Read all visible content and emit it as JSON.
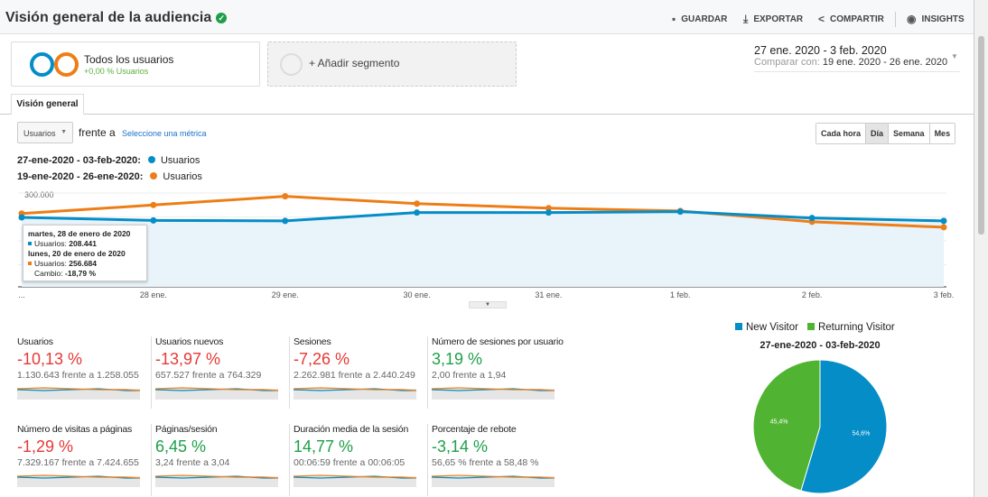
{
  "header": {
    "title": "Visión general de la audiencia",
    "verified_icon": "check-shield-icon",
    "actions": [
      {
        "label": "GUARDAR",
        "icon": "save-icon"
      },
      {
        "label": "EXPORTAR",
        "icon": "download-icon"
      },
      {
        "label": "COMPARTIR",
        "icon": "share-icon"
      },
      {
        "label": "INSIGHTS",
        "icon": "insights-icon"
      }
    ]
  },
  "segments": {
    "active": {
      "name": "Todos los usuarios",
      "sub": "+0,00 % Usuarios"
    },
    "add_label": "+ Añadir segmento"
  },
  "date_range": {
    "main": "27 ene. 2020 - 3 feb. 2020",
    "compare_label": "Comparar con:",
    "compare": "19 ene. 2020 - 26 ene. 2020"
  },
  "tabs": [
    {
      "label": "Visión general",
      "active": true
    }
  ],
  "controls": {
    "metric": "Usuarios",
    "versus": "frente a",
    "select_metric": "Seleccione una métrica",
    "periods": [
      {
        "label": "Cada hora"
      },
      {
        "label": "Día",
        "active": true
      },
      {
        "label": "Semana"
      },
      {
        "label": "Mes"
      }
    ]
  },
  "colors": {
    "current": "#058dc7",
    "previous": "#ed7e17",
    "negative": "#e53935",
    "positive": "#1ea04a",
    "new_visitor": "#058dc7",
    "returning_visitor": "#50b432"
  },
  "chart_data": {
    "type": "line",
    "legend": [
      {
        "period": "27-ene-2020 - 03-feb-2020:",
        "name": "Usuarios"
      },
      {
        "period": "19-ene-2020 - 26-ene-2020:",
        "name": "Usuarios"
      }
    ],
    "y_tick_label": "300.000",
    "ylim": [
      0,
      300000
    ],
    "x_tick_labels": [
      "...",
      "28 ene.",
      "29 ene.",
      "30 ene.",
      "31 ene.",
      "1 feb.",
      "2 feb.",
      "3 feb."
    ],
    "series": [
      {
        "name": "Usuarios",
        "period": "27-ene-2020 - 03-feb-2020",
        "values": [
          218000,
          208441,
          207000,
          233000,
          233000,
          236000,
          216000,
          207000
        ]
      },
      {
        "name": "Usuarios",
        "period": "19-ene-2020 - 26-ene-2020",
        "values": [
          230000,
          256684,
          284000,
          261000,
          247000,
          238000,
          204000,
          187000
        ]
      }
    ]
  },
  "tooltip": {
    "date1": "martes, 28 de enero de 2020",
    "label1": "Usuarios:",
    "value1": "208.441",
    "date2": "lunes, 20 de enero de 2020",
    "label2": "Usuarios:",
    "value2": "256.684",
    "change_label": "Cambio:",
    "change": "-18,79 %"
  },
  "metrics": [
    {
      "name": "Usuarios",
      "pct": "-10,13 %",
      "trend": "neg",
      "cmp": "1.130.643 frente a 1.258.055"
    },
    {
      "name": "Usuarios nuevos",
      "pct": "-13,97 %",
      "trend": "neg",
      "cmp": "657.527 frente a 764.329"
    },
    {
      "name": "Sesiones",
      "pct": "-7,26 %",
      "trend": "neg",
      "cmp": "2.262.981 frente a 2.440.249"
    },
    {
      "name": "Número de sesiones por usuario",
      "pct": "3,19 %",
      "trend": "pos",
      "cmp": "2,00 frente a 1,94"
    },
    {
      "name": "Número de visitas a páginas",
      "pct": "-1,29 %",
      "trend": "neg",
      "cmp": "7.329.167 frente a 7.424.655"
    },
    {
      "name": "Páginas/sesión",
      "pct": "6,45 %",
      "trend": "pos",
      "cmp": "3,24 frente a 3,04"
    },
    {
      "name": "Duración media de la sesión",
      "pct": "14,77 %",
      "trend": "pos",
      "cmp": "00:06:59 frente a 00:06:05"
    },
    {
      "name": "Porcentaje de rebote",
      "pct": "-3,14 %",
      "trend": "pos",
      "cmp": "56,65 % frente a 58,48 %"
    }
  ],
  "pie": {
    "title": "27-ene-2020 - 03-feb-2020",
    "legend": [
      "New Visitor",
      "Returning Visitor"
    ],
    "slices": [
      {
        "name": "New Visitor",
        "value": 54.6,
        "label": "54,6%"
      },
      {
        "name": "Returning Visitor",
        "value": 45.4,
        "label": "45,4%"
      }
    ]
  }
}
